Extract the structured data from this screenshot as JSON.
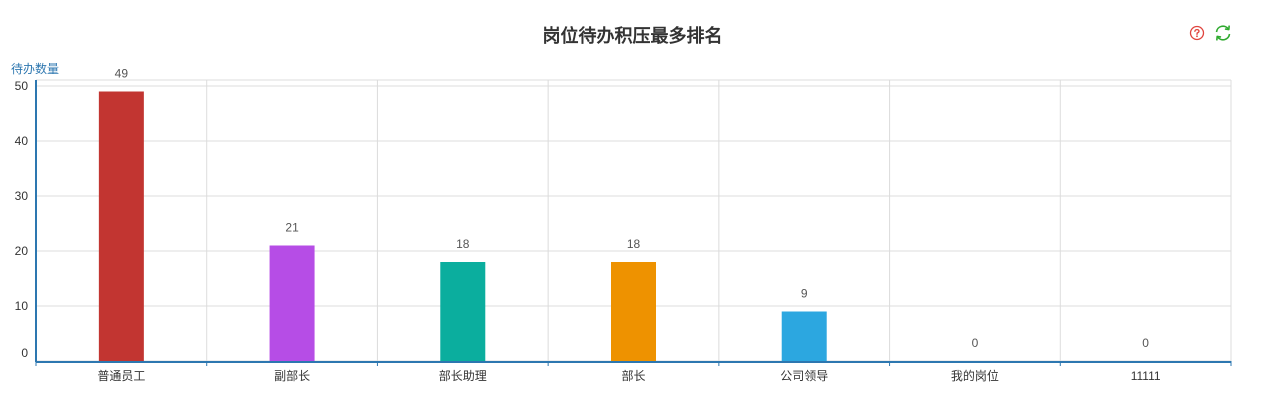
{
  "toolbar": {
    "help_icon": "help-circle-icon",
    "refresh_icon": "refresh-icon",
    "help_color": "#e0443e",
    "refresh_color": "#2faa2f"
  },
  "chart_data": {
    "type": "bar",
    "title": "岗位待办积压最多排名",
    "ylabel": "待办数量",
    "xlabel": "",
    "categories": [
      "普通员工",
      "副部长",
      "部长助理",
      "部长",
      "公司领导",
      "我的岗位",
      "11111"
    ],
    "values": [
      49,
      21,
      18,
      18,
      9,
      0,
      0
    ],
    "colors": [
      "#c23531",
      "#b64de6",
      "#0bae9e",
      "#ee9200",
      "#2ca7e0",
      "#2ca7e0",
      "#2ca7e0"
    ],
    "ylim": [
      0,
      50
    ],
    "yticks": [
      0,
      10,
      20,
      30,
      40,
      50
    ],
    "grid": true,
    "data_labels": true,
    "axis_color": "#2d77b0"
  }
}
